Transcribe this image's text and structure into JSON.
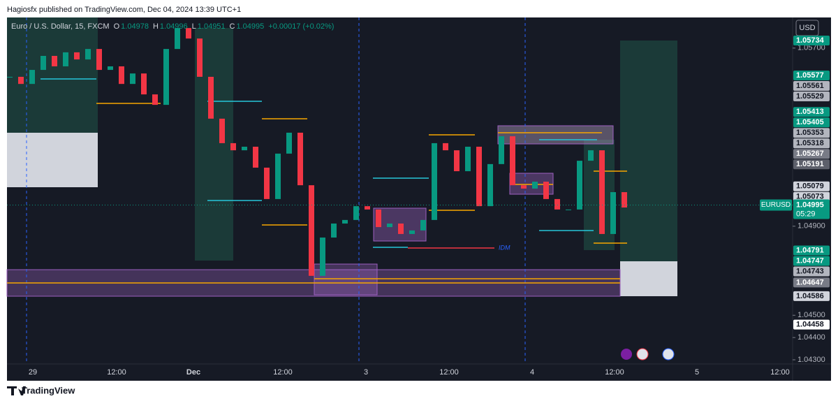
{
  "header": {
    "title": "Hagiosfx published on TradingView.com, Dec 04, 2024 13:39 UTC+1"
  },
  "legend": {
    "symbol": "Euro / U.S. Dollar, 15, FXCM",
    "ohlc": [
      {
        "label": "O",
        "value": 1.04978
      },
      {
        "label": "H",
        "value": 1.04996
      },
      {
        "label": "L",
        "value": 1.04951
      },
      {
        "label": "C",
        "value": 1.04995
      }
    ],
    "change": "+0.00017 (+0.02%)"
  },
  "currency_button": "USD",
  "price_axis": {
    "ticks": [
      {
        "value": 1.057,
        "label": "1.05700"
      },
      {
        "value": 1.049,
        "label": "1.04900"
      },
      {
        "value": 1.045,
        "label": "1.04500"
      },
      {
        "value": 1.044,
        "label": "1.04400"
      },
      {
        "value": 1.043,
        "label": "1.04300"
      }
    ],
    "tags": [
      {
        "value": 1.05734,
        "color": "#089981"
      },
      {
        "value": 1.05577,
        "color": "#089981"
      },
      {
        "value": 1.05561,
        "color": "#b2b5be"
      },
      {
        "value": 1.05529,
        "color": "#b2b5be"
      },
      {
        "value": 1.05413,
        "color": "#089981"
      },
      {
        "value": 1.05405,
        "color": "#089981"
      },
      {
        "value": 1.05353,
        "color": "#b2b5be"
      },
      {
        "value": 1.05318,
        "color": "#b2b5be"
      },
      {
        "value": 1.05267,
        "color": "#787b86"
      },
      {
        "value": 1.05191,
        "color": "#5d606b"
      },
      {
        "value": 1.05079,
        "color": "#d1d4dc"
      },
      {
        "value": 1.05073,
        "color": "#d1d4dc"
      },
      {
        "value": 1.04791,
        "color": "#089981"
      },
      {
        "value": 1.04747,
        "color": "#089981"
      },
      {
        "value": 1.04743,
        "color": "#b2b5be"
      },
      {
        "value": 1.04647,
        "color": "#787b86"
      },
      {
        "value": 1.04586,
        "color": "#d1d4dc"
      },
      {
        "value": 1.04458,
        "color": "#ffffff"
      }
    ],
    "current": {
      "symbol": "EURUSD",
      "price": 1.04995,
      "countdown": "05:29",
      "color": "#089981"
    }
  },
  "time_axis": [
    "29",
    "12:00",
    "Dec",
    "12:00",
    "3",
    "12:00",
    "4",
    "12:00",
    "5",
    "12:00"
  ],
  "price_path": {
    "closes": [
      1.05571,
      1.05539,
      1.05602,
      1.05665,
      1.05618,
      1.05681,
      1.05649,
      1.05696,
      1.05602,
      1.05618,
      1.05539,
      1.05586,
      1.05492,
      1.05445,
      1.05696,
      1.0579,
      1.05743,
      1.05571,
      1.05383,
      1.05273,
      1.05241,
      1.05257,
      1.05163,
      1.05022,
      1.05226,
      1.0532,
      1.05084,
      1.04677,
      1.04849,
      1.04912,
      1.04928,
      1.0499,
      1.04975,
      1.04896,
      1.04912,
      1.04865,
      1.04881,
      1.04928,
      1.05273,
      1.05241,
      1.05147,
      1.05257,
      1.0499,
      1.05179,
      1.05304,
      1.05084,
      1.05069,
      1.051,
      1.05022,
      1.04975,
      1.04975,
      1.05194,
      1.05241,
      1.04865,
      1.05053,
      1.04984
    ],
    "up_color": "#089981",
    "down_color": "#f23645"
  },
  "annotation": "IDM",
  "footer": "TradingView"
}
